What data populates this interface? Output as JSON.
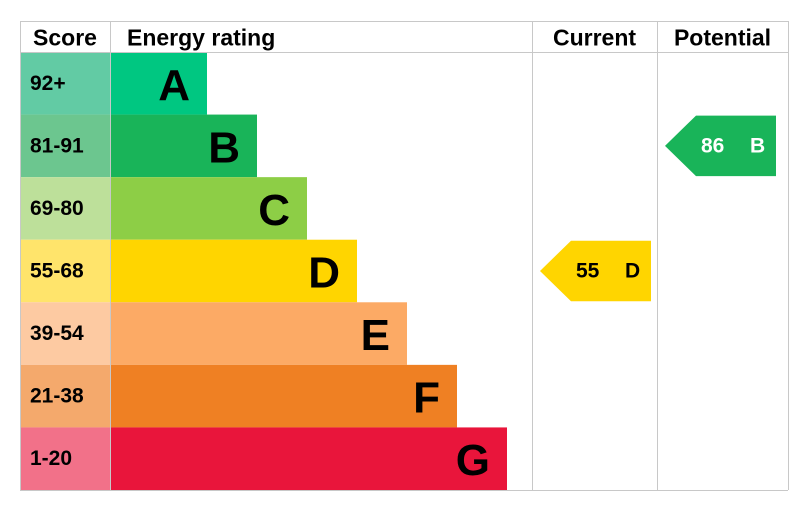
{
  "chart_data": {
    "type": "epc",
    "headers": {
      "score": "Score",
      "rating": "Energy rating",
      "current": "Current",
      "potential": "Potential"
    },
    "bands": [
      {
        "score": "92+",
        "letter": "A",
        "color": "#00c781",
        "score_color": "#62cba4"
      },
      {
        "score": "81-91",
        "letter": "B",
        "color": "#19b459",
        "score_color": "#6cc68f"
      },
      {
        "score": "69-80",
        "letter": "C",
        "color": "#8dce46",
        "score_color": "#bde09a"
      },
      {
        "score": "55-68",
        "letter": "D",
        "color": "#ffd500",
        "score_color": "#ffe46b"
      },
      {
        "score": "39-54",
        "letter": "E",
        "color": "#fcaa65",
        "score_color": "#fdcaa2"
      },
      {
        "score": "21-38",
        "letter": "F",
        "color": "#ef8023",
        "score_color": "#f4a96c"
      },
      {
        "score": "1-20",
        "letter": "G",
        "color": "#e9153b",
        "score_color": "#f27189"
      }
    ],
    "current": {
      "value": 55,
      "letter": "D"
    },
    "potential": {
      "value": 86,
      "letter": "B"
    }
  }
}
